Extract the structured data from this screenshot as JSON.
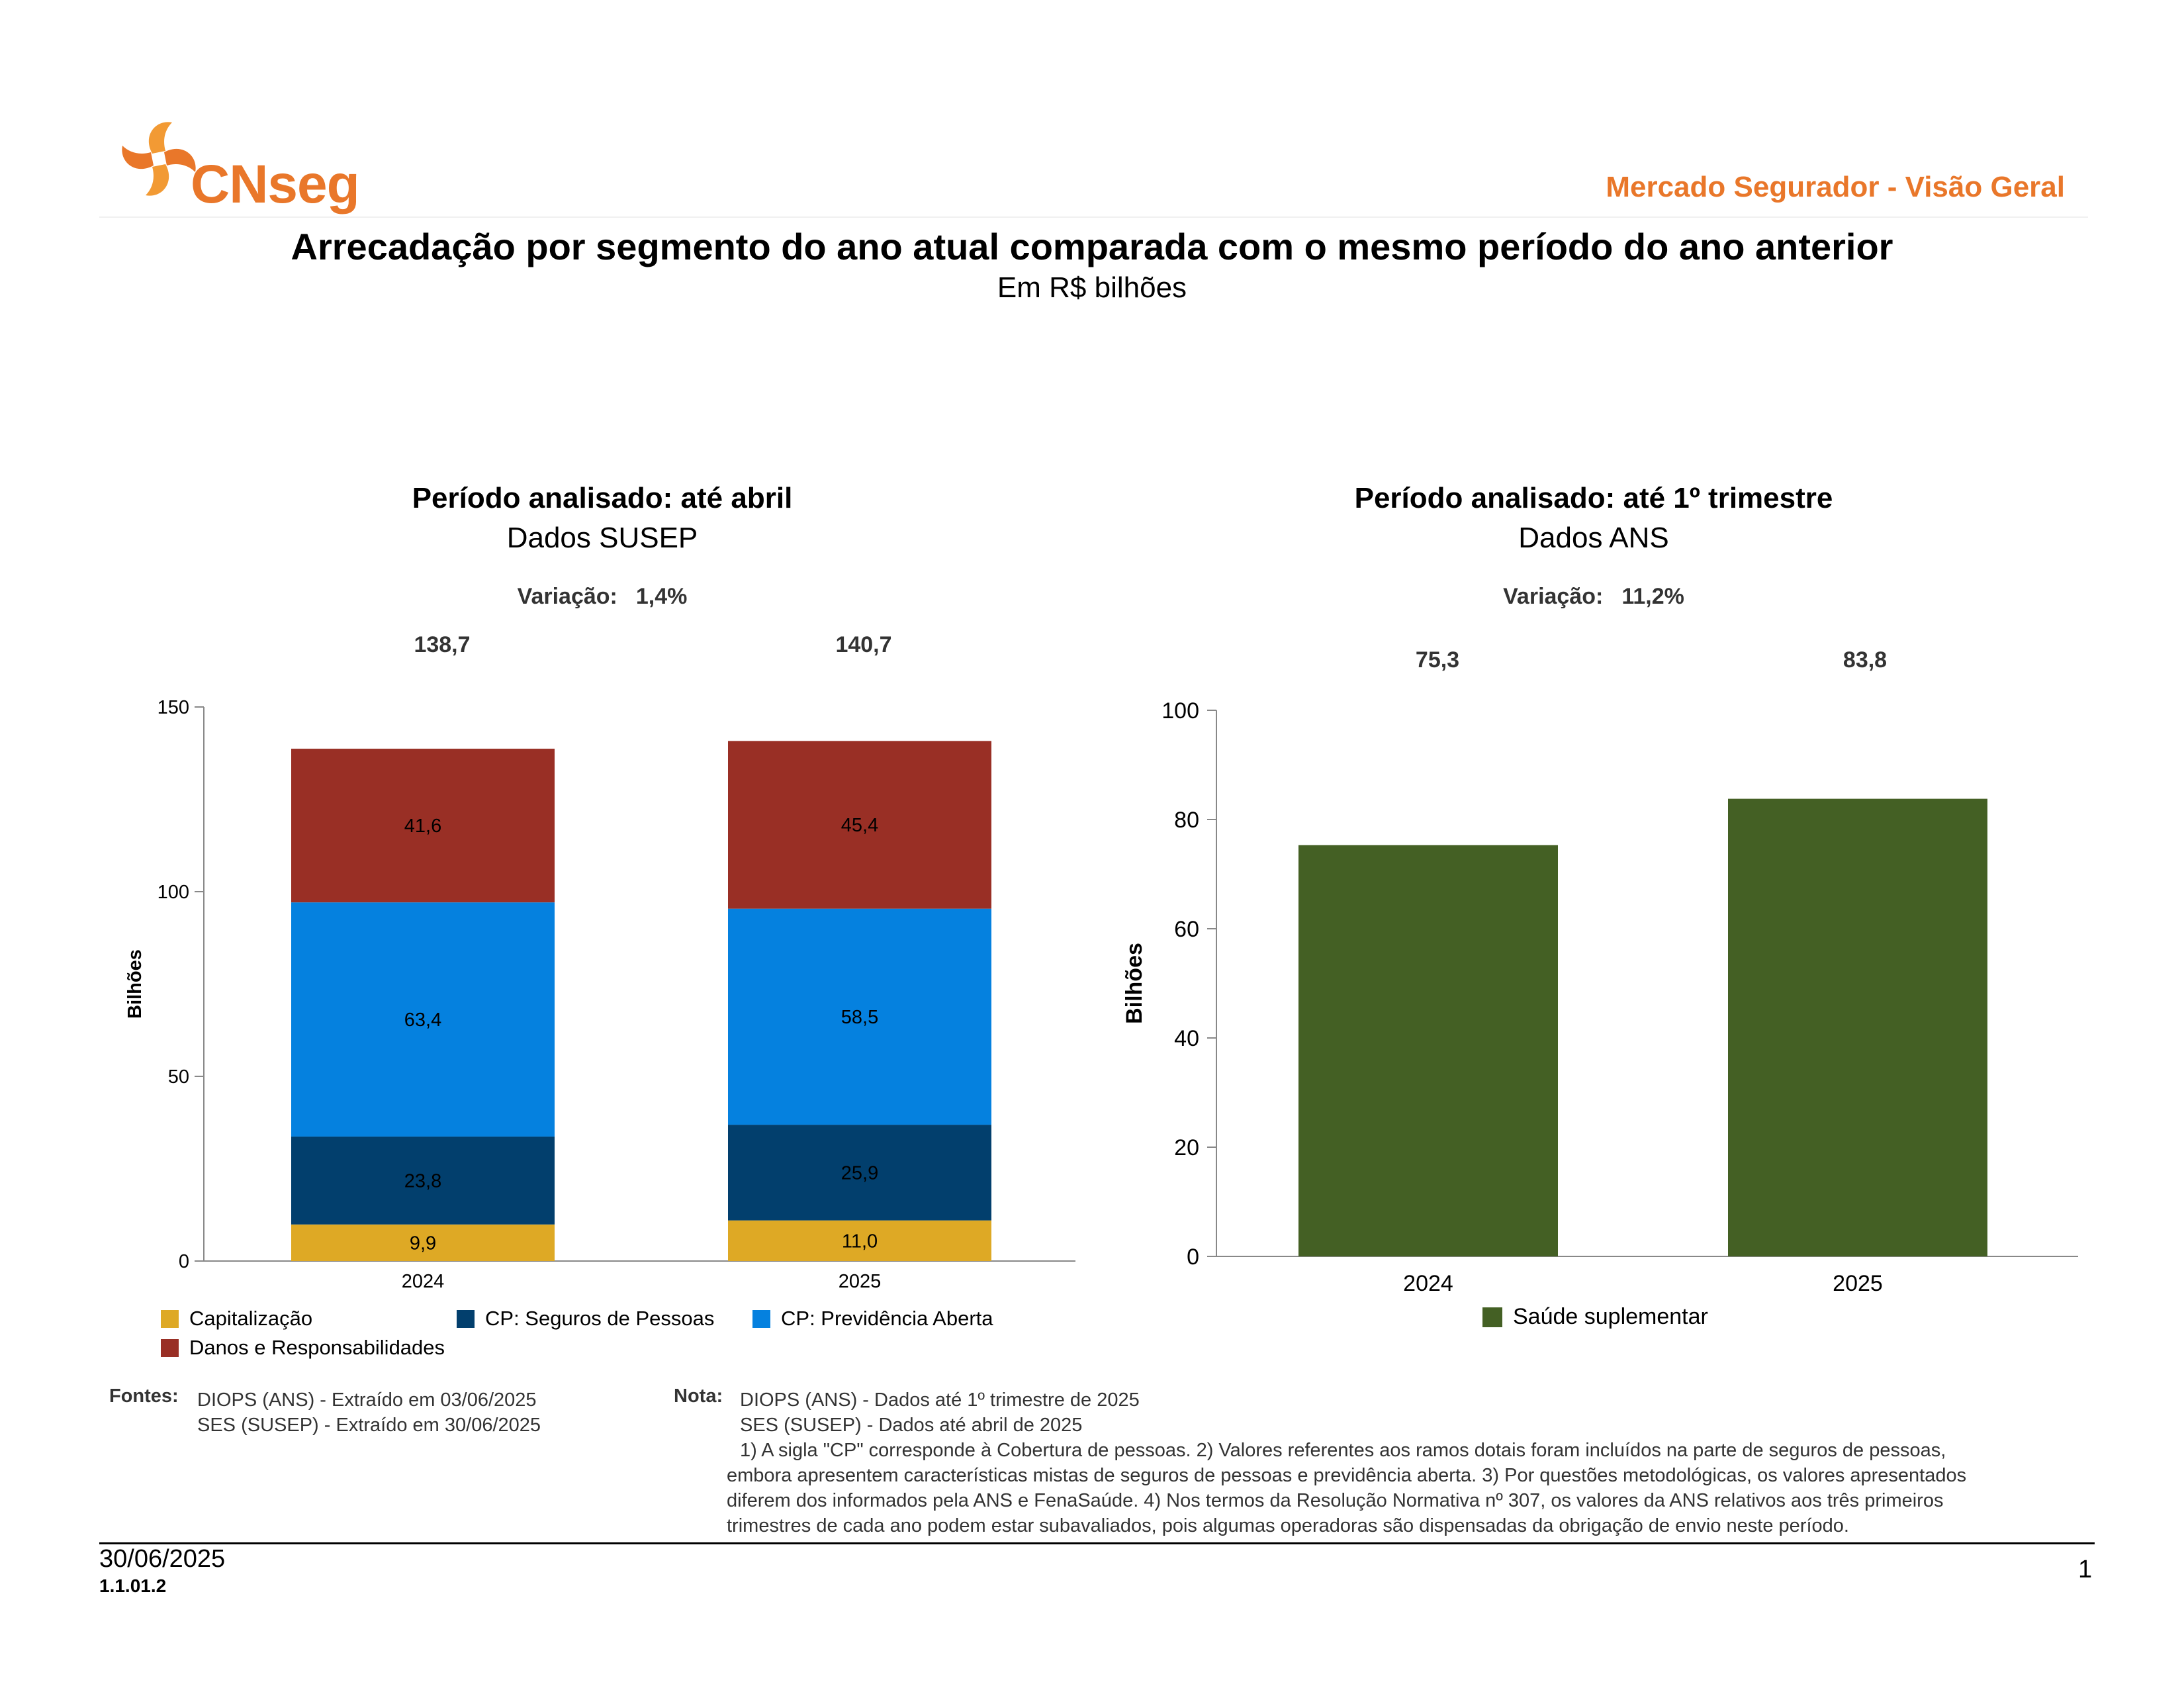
{
  "header": {
    "logo_text": "CNseg",
    "section_title": "Mercado Segurador - Visão Geral"
  },
  "main": {
    "title": "Arrecadação por segmento do ano atual comparada com o mesmo período do ano anterior",
    "subtitle": "Em R$ bilhões"
  },
  "colors": {
    "brand_orange": "#e9772a",
    "capitalizacao": "#dea925",
    "seguros_pessoas": "#023f6d",
    "previdencia": "#0581df",
    "danos": "#992f25",
    "saude": "#446024"
  },
  "left_panel": {
    "title": "Período analisado: até abril",
    "subtitle": "Dados SUSEP",
    "variation_label": "Variação:",
    "variation_value": "1,4%",
    "totals": [
      "138,7",
      "140,7"
    ]
  },
  "right_panel": {
    "title": "Período analisado: até 1º trimestre",
    "subtitle": "Dados ANS",
    "variation_label": "Variação:",
    "variation_value": "11,2%",
    "totals": [
      "75,3",
      "83,8"
    ]
  },
  "chart_data": [
    {
      "type": "bar",
      "stacked": true,
      "categories": [
        "2024",
        "2025"
      ],
      "series": [
        {
          "name": "Capitalização",
          "values": [
            9.9,
            11.0
          ],
          "labels": [
            "9,9",
            "11,0"
          ],
          "color": "#dea925"
        },
        {
          "name": "CP: Seguros de Pessoas",
          "values": [
            23.8,
            25.9
          ],
          "labels": [
            "23,8",
            "25,9"
          ],
          "color": "#023f6d"
        },
        {
          "name": "CP: Previdência Aberta",
          "values": [
            63.4,
            58.5
          ],
          "labels": [
            "63,4",
            "58,5"
          ],
          "color": "#0581df"
        },
        {
          "name": "Danos e Responsabilidades",
          "values": [
            41.6,
            45.4
          ],
          "labels": [
            "41,6",
            "45,4"
          ],
          "color": "#992f25"
        }
      ],
      "ylabel": "Bilhões",
      "ylim": [
        0,
        150
      ],
      "yticks": [
        0,
        50,
        100,
        150
      ],
      "legend": "bottom"
    },
    {
      "type": "bar",
      "categories": [
        "2024",
        "2025"
      ],
      "series": [
        {
          "name": "Saúde suplementar",
          "values": [
            75.3,
            83.8
          ],
          "color": "#446024"
        }
      ],
      "ylabel": "Bilhões",
      "ylim": [
        0,
        100
      ],
      "yticks": [
        0,
        20,
        40,
        60,
        80,
        100
      ],
      "legend": "bottom"
    }
  ],
  "footer": {
    "sources_label": "Fontes:",
    "sources": [
      "DIOPS (ANS) -  Extraído em 03/06/2025",
      "SES (SUSEP) -  Extraído em 30/06/2025"
    ],
    "note_label": "Nota:",
    "note_lines": [
      "DIOPS (ANS) - Dados até 1º trimestre de 2025",
      "SES (SUSEP) - Dados até abril de 2025",
      "1) A sigla \"CP\" corresponde à Cobertura de pessoas. 2) Valores referentes aos ramos dotais foram incluídos na parte de seguros de pessoas,",
      "embora apresentem características mistas de seguros de pessoas e previdência aberta. 3) Por questões metodológicas, os valores apresentados",
      "diferem dos informados pela ANS e FenaSaúde. 4) Nos termos da Resolução Normativa nº 307, os valores da ANS relativos aos três primeiros",
      "trimestres de cada ano podem estar subavaliados, pois algumas operadoras são dispensadas da obrigação de envio neste período."
    ],
    "date": "30/06/2025",
    "code": "1.1.01.2",
    "page_number": "1"
  }
}
